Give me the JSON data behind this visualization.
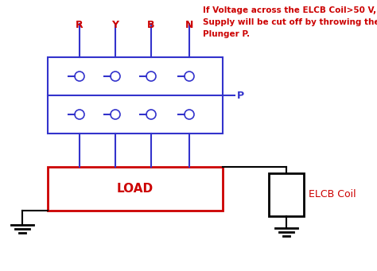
{
  "bg_color": "#ffffff",
  "blue": "#3333cc",
  "red": "#cc0000",
  "black": "#000000",
  "annotation_text": "If Voltage across the ELCB Coil>50 V,\nSupply will be cut off by throwing the\nPlunger P.",
  "annotation_color": "#cc0000",
  "labels_top": [
    "R",
    "Y",
    "B",
    "N"
  ],
  "label_P": "P",
  "load_label": "LOAD",
  "elcb_label": "ELCB Coil",
  "figw": 4.74,
  "figh": 3.41,
  "dpi": 100
}
